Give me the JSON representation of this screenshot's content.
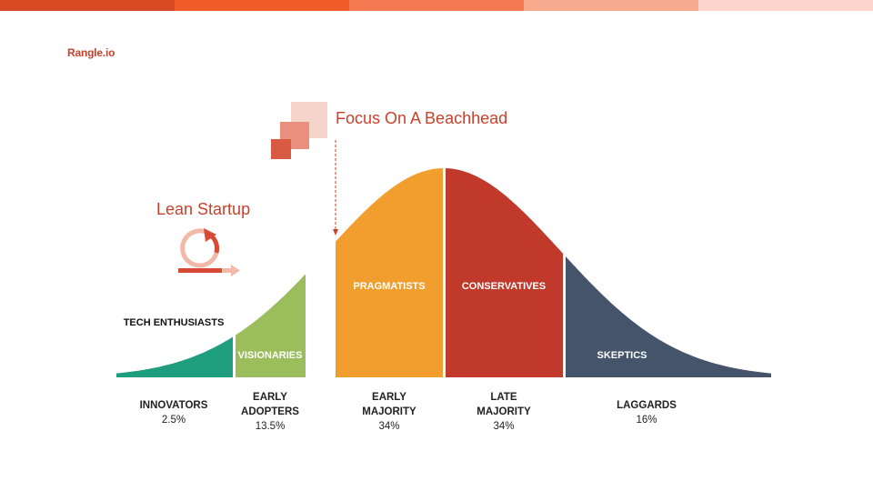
{
  "brand": {
    "logo_text": "Rangle.io"
  },
  "colors": {
    "stripes": [
      "#d94a24",
      "#f15a29",
      "#f57a52",
      "#f8aa8e",
      "#fdd5cc"
    ],
    "innovators": "#1f9e7f",
    "early_adopters": "#9bbd5c",
    "early_majority": "#f29e2e",
    "late_majority": "#c0392b",
    "laggards": "#45546a",
    "accent": "#c9412b"
  },
  "callouts": {
    "beachhead": "Focus On A Beachhead",
    "lean_startup": "Lean Startup"
  },
  "icons": {
    "beachhead": "overlapping-squares-icon",
    "lean_startup": "cycle-arrow-icon"
  },
  "segments": [
    {
      "persona": "TECH ENTHUSIASTS",
      "name": "INNOVATORS",
      "percent": "2.5%"
    },
    {
      "persona": "VISIONARIES",
      "name": "EARLY\nADOPTERS",
      "percent": "13.5%"
    },
    {
      "persona": "PRAGMATISTS",
      "name": "EARLY\nMAJORITY",
      "percent": "34%"
    },
    {
      "persona": "CONSERVATIVES",
      "name": "LATE\nMAJORITY",
      "percent": "34%"
    },
    {
      "persona": "SKEPTICS",
      "name": "LAGGARDS",
      "percent": "16%"
    }
  ]
}
